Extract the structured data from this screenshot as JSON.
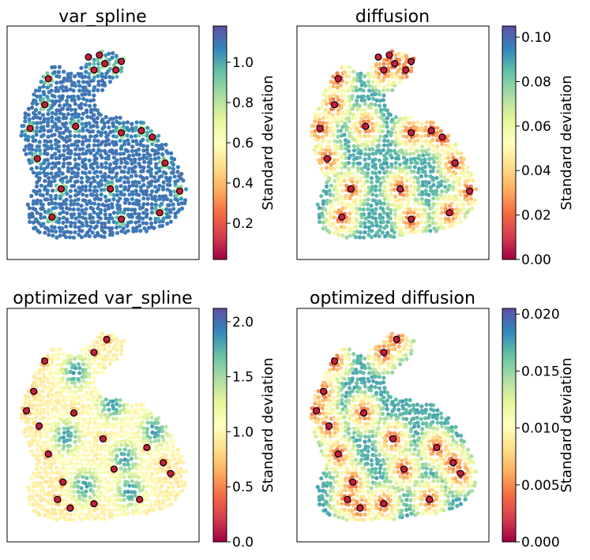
{
  "chart_data": [
    {
      "type": "scatter",
      "title": "var_spline",
      "colorbar": {
        "label": "Standard deviation",
        "range": [
          0.02,
          1.18
        ],
        "ticks": [
          0.2,
          0.4,
          0.6,
          0.8,
          1.0
        ],
        "tick_labels": [
          "0.2",
          "0.4",
          "0.6",
          "0.8",
          "1.0"
        ]
      },
      "pattern": "uniform-high",
      "sensors": [
        [
          0.2,
          0.8
        ],
        [
          0.48,
          0.91
        ],
        [
          0.57,
          0.84
        ],
        [
          0.45,
          0.84
        ],
        [
          0.51,
          0.87
        ],
        [
          0.6,
          0.88
        ],
        [
          0.42,
          0.9
        ],
        [
          0.18,
          0.68
        ],
        [
          0.1,
          0.57
        ],
        [
          0.35,
          0.58
        ],
        [
          0.6,
          0.55
        ],
        [
          0.71,
          0.56
        ],
        [
          0.77,
          0.53
        ],
        [
          0.84,
          0.41
        ],
        [
          0.14,
          0.43
        ],
        [
          0.27,
          0.29
        ],
        [
          0.54,
          0.29
        ],
        [
          0.92,
          0.28
        ],
        [
          0.22,
          0.16
        ],
        [
          0.6,
          0.15
        ],
        [
          0.81,
          0.18
        ]
      ],
      "xlabel": "",
      "ylabel": "",
      "grid": false
    },
    {
      "type": "scatter",
      "title": "diffusion",
      "colorbar": {
        "label": "Standard deviation",
        "range": [
          0.0,
          0.105
        ],
        "ticks": [
          0.0,
          0.02,
          0.04,
          0.06,
          0.08,
          0.1
        ],
        "tick_labels": [
          "0.00",
          "0.02",
          "0.04",
          "0.06",
          "0.08",
          "0.10"
        ]
      },
      "pattern": "sensor-min",
      "sensors": [
        [
          0.2,
          0.8
        ],
        [
          0.48,
          0.91
        ],
        [
          0.57,
          0.84
        ],
        [
          0.45,
          0.84
        ],
        [
          0.51,
          0.87
        ],
        [
          0.6,
          0.88
        ],
        [
          0.42,
          0.9
        ],
        [
          0.18,
          0.68
        ],
        [
          0.1,
          0.57
        ],
        [
          0.35,
          0.58
        ],
        [
          0.6,
          0.55
        ],
        [
          0.71,
          0.56
        ],
        [
          0.77,
          0.53
        ],
        [
          0.84,
          0.41
        ],
        [
          0.14,
          0.43
        ],
        [
          0.27,
          0.29
        ],
        [
          0.54,
          0.29
        ],
        [
          0.92,
          0.28
        ],
        [
          0.22,
          0.16
        ],
        [
          0.6,
          0.15
        ],
        [
          0.81,
          0.18
        ]
      ],
      "xlabel": "",
      "ylabel": "",
      "grid": false
    },
    {
      "type": "scatter",
      "title": "optimized var_spline",
      "colorbar": {
        "label": "Standard deviation",
        "range": [
          0.0,
          2.12
        ],
        "ticks": [
          0.0,
          0.5,
          1.0,
          1.5,
          2.0
        ],
        "tick_labels": [
          "0.0",
          "0.5",
          "1.0",
          "1.5",
          "2.0"
        ]
      },
      "pattern": "blobs-high",
      "sensors": [
        [
          0.18,
          0.8
        ],
        [
          0.12,
          0.66
        ],
        [
          0.45,
          0.84
        ],
        [
          0.52,
          0.9
        ],
        [
          0.08,
          0.57
        ],
        [
          0.34,
          0.56
        ],
        [
          0.15,
          0.5
        ],
        [
          0.5,
          0.44
        ],
        [
          0.74,
          0.4
        ],
        [
          0.2,
          0.37
        ],
        [
          0.83,
          0.33
        ],
        [
          0.28,
          0.24
        ],
        [
          0.56,
          0.3
        ],
        [
          0.87,
          0.28
        ],
        [
          0.25,
          0.16
        ],
        [
          0.45,
          0.14
        ],
        [
          0.7,
          0.16
        ],
        [
          0.32,
          0.12
        ]
      ],
      "xlabel": "",
      "ylabel": "",
      "grid": false
    },
    {
      "type": "scatter",
      "title": "optimized diffusion",
      "colorbar": {
        "label": "Standard deviation",
        "range": [
          0.0,
          0.0205
        ],
        "ticks": [
          0.0,
          0.005,
          0.01,
          0.015,
          0.02
        ],
        "tick_labels": [
          "0.000",
          "0.005",
          "0.010",
          "0.015",
          "0.020"
        ]
      },
      "pattern": "sensor-min",
      "sensors": [
        [
          0.18,
          0.8
        ],
        [
          0.12,
          0.66
        ],
        [
          0.45,
          0.84
        ],
        [
          0.52,
          0.9
        ],
        [
          0.08,
          0.57
        ],
        [
          0.34,
          0.56
        ],
        [
          0.15,
          0.5
        ],
        [
          0.5,
          0.44
        ],
        [
          0.74,
          0.4
        ],
        [
          0.2,
          0.37
        ],
        [
          0.83,
          0.33
        ],
        [
          0.28,
          0.24
        ],
        [
          0.56,
          0.3
        ],
        [
          0.87,
          0.28
        ],
        [
          0.25,
          0.16
        ],
        [
          0.45,
          0.14
        ],
        [
          0.7,
          0.16
        ],
        [
          0.32,
          0.12
        ]
      ],
      "xlabel": "",
      "ylabel": "",
      "grid": false
    }
  ],
  "colors": {
    "sensor_fill": "#c41e3a",
    "sensor_edge": "#000000",
    "edge": "#2a2a2a",
    "colormap": [
      "#9e0142",
      "#d53e4f",
      "#f46d43",
      "#fdae61",
      "#fee08b",
      "#ffffbf",
      "#e6f598",
      "#abdda4",
      "#66c2a5",
      "#3288bd",
      "#5e4fa2"
    ]
  }
}
